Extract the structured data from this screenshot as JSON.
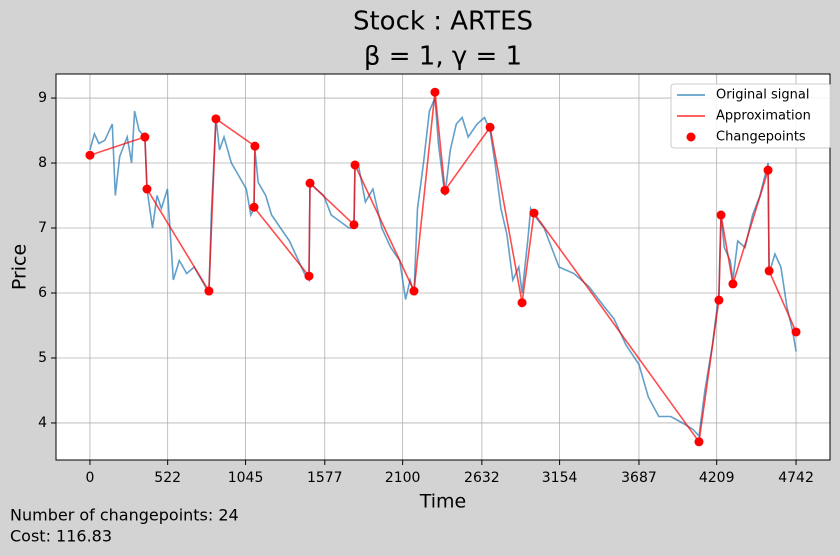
{
  "chart_data": {
    "type": "line",
    "title": "Stock : ARTES",
    "subtitle": "β = 1, γ = 1",
    "x_label": "Time",
    "y_label": "Price",
    "xlim": [
      -228,
      4970
    ],
    "ylim": [
      3.43,
      9.37
    ],
    "xticks": [
      0,
      522,
      1045,
      1577,
      2100,
      2632,
      3154,
      3687,
      4209,
      4742
    ],
    "yticks": [
      4,
      5,
      6,
      7,
      8,
      9
    ],
    "grid": true,
    "legend": "upper right",
    "series": [
      {
        "name": "Original signal",
        "type": "line",
        "color": "#1f77b4",
        "x": [
          0,
          30,
          60,
          100,
          150,
          170,
          200,
          250,
          280,
          300,
          330,
          369,
          383,
          420,
          450,
          480,
          520,
          560,
          600,
          650,
          700,
          750,
          799,
          815,
          846,
          870,
          900,
          950,
          1000,
          1050,
          1080,
          1102,
          1108,
          1130,
          1180,
          1220,
          1280,
          1340,
          1400,
          1440,
          1471,
          1478,
          1520,
          1570,
          1620,
          1680,
          1740,
          1773,
          1780,
          1800,
          1850,
          1900,
          1960,
          2020,
          2080,
          2120,
          2150,
          2176,
          2200,
          2240,
          2280,
          2317,
          2340,
          2384,
          2420,
          2460,
          2500,
          2540,
          2600,
          2650,
          2687,
          2720,
          2760,
          2800,
          2840,
          2880,
          2902,
          2940,
          2960,
          2982,
          3050,
          3150,
          3250,
          3350,
          3450,
          3520,
          3600,
          3687,
          3750,
          3820,
          3900,
          3980,
          4050,
          4090,
          4130,
          4180,
          4224,
          4238,
          4260,
          4300,
          4318,
          4350,
          4400,
          4450,
          4500,
          4554,
          4561,
          4600,
          4640,
          4680,
          4720,
          4742
        ],
        "values": [
          8.2,
          8.45,
          8.3,
          8.35,
          8.6,
          7.5,
          8.1,
          8.4,
          8.0,
          8.8,
          8.5,
          8.4,
          7.6,
          7.0,
          7.5,
          7.3,
          7.6,
          6.2,
          6.5,
          6.3,
          6.4,
          6.2,
          6.0,
          7.2,
          8.7,
          8.2,
          8.4,
          8.0,
          7.8,
          7.6,
          7.2,
          7.3,
          8.2,
          7.7,
          7.5,
          7.2,
          7.0,
          6.8,
          6.5,
          6.3,
          6.2,
          7.7,
          7.6,
          7.5,
          7.2,
          7.1,
          7.0,
          7.0,
          8.0,
          8.0,
          7.4,
          7.6,
          7.0,
          6.7,
          6.5,
          5.9,
          6.2,
          6.0,
          7.3,
          8.0,
          8.8,
          9.0,
          8.3,
          7.5,
          8.2,
          8.6,
          8.7,
          8.4,
          8.6,
          8.7,
          8.5,
          8.0,
          7.3,
          6.9,
          6.2,
          6.4,
          6.0,
          6.8,
          7.3,
          7.2,
          7.0,
          6.4,
          6.3,
          6.1,
          5.8,
          5.6,
          5.2,
          4.9,
          4.4,
          4.1,
          4.1,
          4.0,
          3.9,
          3.8,
          4.5,
          5.2,
          6.0,
          7.2,
          6.7,
          6.5,
          6.2,
          6.8,
          6.7,
          7.2,
          7.5,
          8.0,
          6.3,
          6.6,
          6.4,
          5.8,
          5.4,
          5.1
        ]
      },
      {
        "name": "Approximation",
        "type": "line",
        "color": "#ff0000",
        "x": [
          0,
          369,
          383,
          799,
          846,
          1108,
          1102,
          1471,
          1478,
          1773,
          1780,
          2176,
          2317,
          2384,
          2687,
          2902,
          2982,
          4090,
          4224,
          4238,
          4318,
          4554,
          4561,
          4742
        ],
        "values": [
          8.12,
          8.4,
          7.6,
          6.03,
          8.68,
          8.26,
          7.32,
          6.26,
          7.69,
          7.05,
          7.97,
          6.03,
          9.09,
          7.58,
          8.55,
          5.85,
          7.23,
          3.71,
          5.89,
          7.2,
          6.14,
          7.89,
          6.34,
          5.4
        ]
      },
      {
        "name": "Changepoints",
        "type": "scatter",
        "color": "#ff0000",
        "x": [
          0,
          369,
          383,
          799,
          846,
          1108,
          1102,
          1471,
          1478,
          1773,
          1780,
          2176,
          2317,
          2384,
          2687,
          2902,
          2982,
          4090,
          4224,
          4238,
          4318,
          4554,
          4561,
          4742
        ],
        "values": [
          8.12,
          8.4,
          7.6,
          6.03,
          8.68,
          8.26,
          7.32,
          6.26,
          7.69,
          7.05,
          7.97,
          6.03,
          9.09,
          7.58,
          8.55,
          5.85,
          7.23,
          3.71,
          5.89,
          7.2,
          6.14,
          7.89,
          6.34,
          5.4
        ]
      }
    ],
    "footer": [
      "Number of changepoints: 24",
      "Cost: 116.83"
    ]
  }
}
